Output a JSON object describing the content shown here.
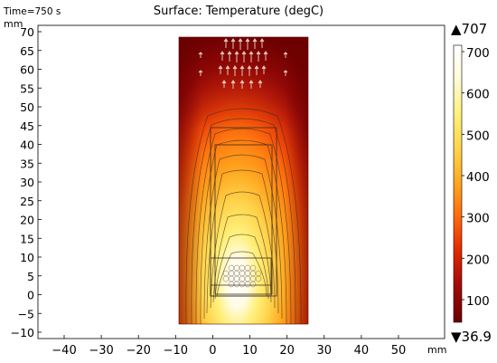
{
  "header": {
    "time_label": "Time=750 s",
    "title": "Surface: Temperature (degC)"
  },
  "axes": {
    "y_unit": "mm",
    "x_unit": "mm",
    "x_ticks": [
      "−40",
      "−30",
      "−20",
      "−10",
      "0",
      "10",
      "20",
      "30",
      "40",
      "50"
    ],
    "y_ticks": [
      "70",
      "65",
      "60",
      "55",
      "50",
      "45",
      "40",
      "35",
      "30",
      "25",
      "20",
      "15",
      "10",
      "5",
      "0",
      "−5",
      "−10"
    ]
  },
  "colorbar": {
    "max_label": "▲707",
    "min_label": "▼36.9",
    "ticks": [
      "700",
      "600",
      "500",
      "400",
      "300",
      "200",
      "100"
    ]
  },
  "colors": {
    "cold": "#6b0000",
    "mid": "#e32a00",
    "warm": "#ff9b00",
    "hot": "#fff07a",
    "hottest": "#ffffff"
  }
}
